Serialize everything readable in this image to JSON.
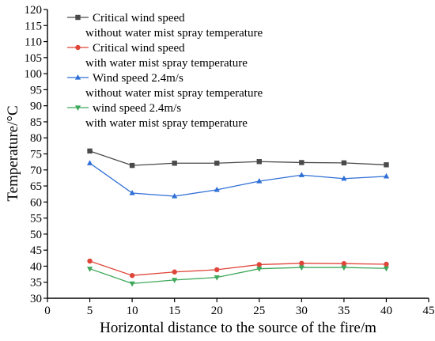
{
  "chart_data": {
    "type": "line",
    "xlabel": "Horizontal distance to the source of the fire/m",
    "ylabel": "Temperature/°C",
    "xlim": [
      0,
      45
    ],
    "ylim": [
      30,
      120
    ],
    "x_ticks": [
      "0",
      "5",
      "10",
      "15",
      "20",
      "25",
      "30",
      "35",
      "40",
      "45"
    ],
    "y_ticks": [
      "30",
      "35",
      "40",
      "45",
      "50",
      "55",
      "60",
      "65",
      "70",
      "75",
      "80",
      "85",
      "90",
      "95",
      "100",
      "105",
      "110",
      "115",
      "120"
    ],
    "grid": false,
    "legend_position": "top-left",
    "x": [
      5,
      10,
      15,
      20,
      25,
      30,
      35,
      40
    ],
    "series": [
      {
        "name": "Critical wind speed",
        "name_line2": "without water mist spray temperature",
        "marker": "square",
        "color": "#4a4a4a",
        "values": [
          75.9,
          71.4,
          72.1,
          72.1,
          72.6,
          72.3,
          72.2,
          71.6
        ]
      },
      {
        "name": "Critical wind speed",
        "name_line2": "with water mist spray temperature",
        "marker": "circle",
        "color": "#e0453a",
        "values": [
          41.6,
          37.1,
          38.2,
          38.9,
          40.5,
          40.9,
          40.8,
          40.6
        ]
      },
      {
        "name": "Wind speed 2.4m/s",
        "name_line2": "without water mist spray temperature",
        "marker": "triangle-up",
        "color": "#2f6fd6",
        "values": [
          72.1,
          62.8,
          61.8,
          63.8,
          66.5,
          68.4,
          67.3,
          68.0
        ]
      },
      {
        "name": "wind speed 2.4m/s",
        "name_line2": "with water mist spray temperature",
        "marker": "triangle-down",
        "color": "#3ea85a",
        "values": [
          39.2,
          34.6,
          35.7,
          36.5,
          39.2,
          39.6,
          39.6,
          39.3
        ]
      }
    ]
  }
}
